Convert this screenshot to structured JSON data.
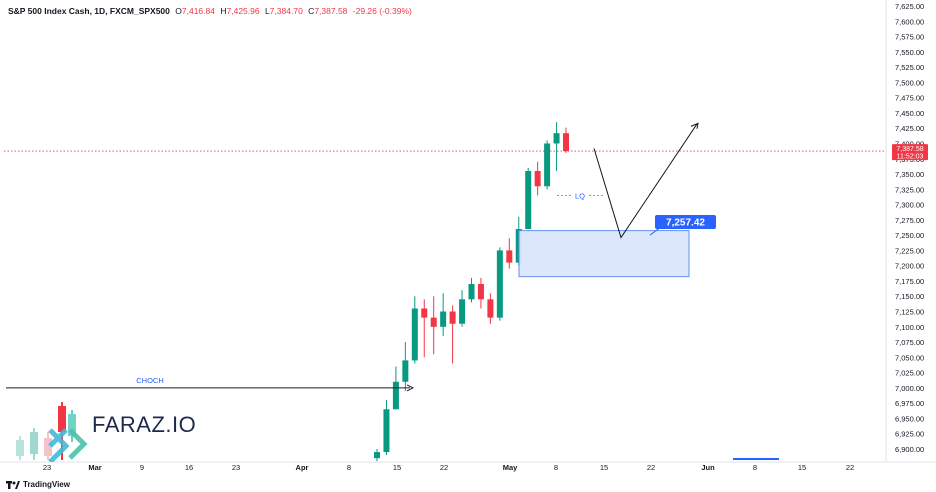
{
  "header": {
    "symbol": "S&P 500 Index Cash, 1D, FXCM_SPX500",
    "open_label": "O",
    "open": "7,416.84",
    "high_label": "H",
    "high": "7,425.96",
    "low_label": "L",
    "low": "7,384.70",
    "close_label": "C",
    "close": "7,387.58",
    "change": "-29.26 (-0.39%)"
  },
  "price_tag": {
    "price": "7,387.58",
    "countdown": "11:52:03"
  },
  "brand": {
    "name": "TradingView",
    "logo_icon": "tradingview-logo-icon"
  },
  "watermark": {
    "text": "FARAZ.IO",
    "icon": "faraz-candles-logo-icon"
  },
  "annotations": {
    "choch_label": "CHOCH",
    "lq_label": "LQ",
    "target_label": "7,257.42"
  },
  "colors": {
    "up": "#089981",
    "down": "#f23645",
    "zone_fill": "#dbe6fb",
    "zone_border": "#5c8dea",
    "target_tag": "#2962ff",
    "price_line": "#f23645",
    "choch_line": "#1a237e"
  },
  "chart_data": {
    "type": "candlestick",
    "timeframe": "1D",
    "y_ticks": [
      "7,625.00",
      "7,600.00",
      "7,575.00",
      "7,550.00",
      "7,525.00",
      "7,500.00",
      "7,475.00",
      "7,450.00",
      "7,425.00",
      "7,400.00",
      "7,375.00",
      "7,350.00",
      "7,325.00",
      "7,300.00",
      "7,275.00",
      "7,250.00",
      "7,225.00",
      "7,200.00",
      "7,175.00",
      "7,150.00",
      "7,125.00",
      "7,100.00",
      "7,075.00",
      "7,050.00",
      "7,025.00",
      "7,000.00",
      "6,975.00",
      "6,950.00",
      "6,925.00",
      "6,900.00"
    ],
    "y_tick_values": [
      7625,
      7600,
      7575,
      7550,
      7525,
      7500,
      7475,
      7450,
      7425,
      7400,
      7375,
      7350,
      7325,
      7300,
      7275,
      7250,
      7225,
      7200,
      7175,
      7150,
      7125,
      7100,
      7075,
      7050,
      7025,
      7000,
      6975,
      6950,
      6925,
      6900
    ],
    "ylim": [
      6890,
      7630
    ],
    "x_ticks": [
      "23",
      "Mar",
      "9",
      "16",
      "23",
      "Apr",
      "8",
      "15",
      "22",
      "May",
      "8",
      "15",
      "22",
      "Jun",
      "8",
      "15",
      "22"
    ],
    "candles": [
      {
        "o": 6885,
        "h": 6900,
        "l": 6880,
        "c": 6895
      },
      {
        "o": 6895,
        "h": 6980,
        "l": 6890,
        "c": 6965
      },
      {
        "o": 6965,
        "h": 7035,
        "l": 6965,
        "c": 7010
      },
      {
        "o": 7010,
        "h": 7075,
        "l": 6995,
        "c": 7045
      },
      {
        "o": 7045,
        "h": 7150,
        "l": 7040,
        "c": 7130
      },
      {
        "o": 7130,
        "h": 7145,
        "l": 7050,
        "c": 7115
      },
      {
        "o": 7115,
        "h": 7150,
        "l": 7055,
        "c": 7100
      },
      {
        "o": 7100,
        "h": 7155,
        "l": 7085,
        "c": 7125
      },
      {
        "o": 7125,
        "h": 7135,
        "l": 7040,
        "c": 7105
      },
      {
        "o": 7105,
        "h": 7160,
        "l": 7100,
        "c": 7145
      },
      {
        "o": 7145,
        "h": 7180,
        "l": 7140,
        "c": 7170
      },
      {
        "o": 7170,
        "h": 7180,
        "l": 7130,
        "c": 7145
      },
      {
        "o": 7145,
        "h": 7155,
        "l": 7105,
        "c": 7115
      },
      {
        "o": 7115,
        "h": 7230,
        "l": 7110,
        "c": 7225
      },
      {
        "o": 7225,
        "h": 7245,
        "l": 7195,
        "c": 7205
      },
      {
        "o": 7205,
        "h": 7280,
        "l": 7200,
        "c": 7260
      },
      {
        "o": 7260,
        "h": 7360,
        "l": 7260,
        "c": 7355
      },
      {
        "o": 7355,
        "h": 7370,
        "l": 7315,
        "c": 7330
      },
      {
        "o": 7330,
        "h": 7405,
        "l": 7325,
        "c": 7400
      },
      {
        "o": 7400,
        "h": 7435,
        "l": 7355,
        "c": 7416.84
      },
      {
        "o": 7416.84,
        "h": 7425.96,
        "l": 7384.7,
        "c": 7387.58
      }
    ]
  }
}
